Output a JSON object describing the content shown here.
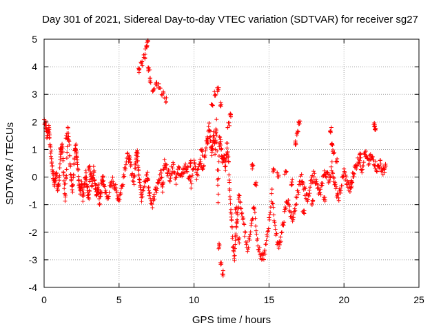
{
  "chart_data": {
    "type": "scatter",
    "title": "Day 301 of 2021, Sidereal Day-to-day VTEC variation (SDTVAR) for receiver sg27",
    "xlabel": "GPS time / hours",
    "ylabel": "SDTVAR / TECUs",
    "xlim": [
      0,
      25
    ],
    "ylim": [
      -4,
      5
    ],
    "xticks": [
      "0",
      "5",
      "10",
      "15",
      "20",
      "25"
    ],
    "yticks": [
      "-4",
      "-3",
      "-2",
      "-1",
      "0",
      "1",
      "2",
      "3",
      "4",
      "5"
    ],
    "grid": true,
    "marker": "+",
    "color": "#ff0000",
    "series": [
      {
        "name": "SDTVAR",
        "anchors": [
          [
            0.0,
            2.1
          ],
          [
            0.1,
            1.9
          ],
          [
            0.2,
            1.5
          ],
          [
            0.3,
            1.8
          ],
          [
            0.4,
            1.2
          ],
          [
            0.5,
            0.6
          ],
          [
            0.6,
            0.1
          ],
          [
            0.7,
            -0.3
          ],
          [
            0.8,
            0.3
          ],
          [
            0.9,
            -0.5
          ],
          [
            1.0,
            -0.1
          ],
          [
            1.1,
            0.7
          ],
          [
            1.2,
            1.3
          ],
          [
            1.3,
            0.2
          ],
          [
            1.4,
            -0.9
          ],
          [
            1.5,
            0.4
          ],
          [
            1.6,
            1.9
          ],
          [
            1.7,
            0.9
          ],
          [
            1.8,
            0.0
          ],
          [
            1.9,
            -0.4
          ],
          [
            2.0,
            0.5
          ],
          [
            2.1,
            1.2
          ],
          [
            2.2,
            0.7
          ],
          [
            2.3,
            -0.1
          ],
          [
            2.4,
            -0.6
          ],
          [
            2.5,
            -0.3
          ],
          [
            2.6,
            -0.8
          ],
          [
            2.7,
            -0.2
          ],
          [
            2.8,
            0.1
          ],
          [
            2.9,
            -0.5
          ],
          [
            3.0,
            -0.7
          ],
          [
            3.1,
            0.2
          ],
          [
            3.2,
            -0.3
          ],
          [
            3.3,
            0.3
          ],
          [
            3.4,
            -0.2
          ],
          [
            3.5,
            -0.6
          ],
          [
            3.6,
            -0.4
          ],
          [
            3.7,
            -0.9
          ],
          [
            3.8,
            -0.5
          ],
          [
            3.9,
            0.0
          ],
          [
            4.0,
            -0.3
          ],
          [
            4.2,
            -0.8
          ],
          [
            4.4,
            -0.4
          ],
          [
            4.6,
            -0.1
          ],
          [
            4.8,
            -0.5
          ],
          [
            5.0,
            -0.8
          ],
          [
            5.2,
            -0.3
          ],
          [
            5.4,
            0.4
          ],
          [
            5.6,
            0.8
          ],
          [
            5.8,
            0.3
          ],
          [
            6.0,
            -0.2
          ],
          [
            6.1,
            0.6
          ],
          [
            6.2,
            0.9
          ],
          [
            6.3,
            0.3
          ],
          [
            6.4,
            -0.3
          ],
          [
            6.5,
            -0.8
          ],
          [
            6.7,
            -0.2
          ],
          [
            6.9,
            0.1
          ],
          [
            7.0,
            -0.5
          ],
          [
            7.2,
            -1.0
          ],
          [
            7.4,
            -0.6
          ],
          [
            7.6,
            -0.3
          ],
          [
            7.8,
            0.2
          ],
          [
            7.9,
            -0.4
          ],
          [
            8.0,
            0.5
          ],
          [
            8.2,
            0.3
          ],
          [
            8.4,
            0.0
          ],
          [
            8.6,
            0.5
          ],
          [
            8.8,
            -0.1
          ],
          [
            9.0,
            0.3
          ],
          [
            9.2,
            0.0
          ],
          [
            9.4,
            0.4
          ],
          [
            9.6,
            0.2
          ],
          [
            9.8,
            -0.3
          ],
          [
            10.0,
            0.5
          ],
          [
            10.2,
            0.0
          ],
          [
            10.4,
            0.7
          ],
          [
            10.6,
            0.3
          ],
          [
            10.8,
            1.2
          ],
          [
            11.0,
            1.8
          ],
          [
            11.1,
            1.4
          ],
          [
            11.2,
            0.8
          ],
          [
            11.3,
            1.5
          ],
          [
            11.4,
            1.0
          ],
          [
            11.5,
            2.0
          ],
          [
            11.6,
            -0.8
          ],
          [
            11.7,
            1.4
          ],
          [
            11.8,
            1.2
          ],
          [
            11.9,
            0.5
          ],
          [
            12.0,
            0.9
          ],
          [
            12.1,
            0.3
          ],
          [
            12.2,
            1.2
          ],
          [
            12.3,
            0.6
          ],
          [
            12.4,
            -0.8
          ],
          [
            12.5,
            -1.6
          ],
          [
            12.6,
            -2.5
          ],
          [
            12.7,
            -2.9
          ],
          [
            12.8,
            -2.0
          ],
          [
            12.9,
            -1.4
          ],
          [
            13.0,
            -0.7
          ],
          [
            13.2,
            -1.3
          ],
          [
            13.4,
            -2.1
          ],
          [
            13.6,
            -2.6
          ],
          [
            13.8,
            -1.8
          ],
          [
            14.0,
            -1.0
          ],
          [
            14.2,
            -2.2
          ],
          [
            14.4,
            -2.8
          ],
          [
            14.6,
            -3.0
          ],
          [
            14.8,
            -2.5
          ],
          [
            15.0,
            -1.6
          ],
          [
            15.2,
            -0.6
          ],
          [
            15.4,
            -1.8
          ],
          [
            15.6,
            -2.5
          ],
          [
            15.8,
            -2.2
          ],
          [
            16.0,
            -1.5
          ],
          [
            16.2,
            -0.8
          ],
          [
            16.4,
            -1.2
          ],
          [
            16.6,
            -1.7
          ],
          [
            16.8,
            -0.9
          ],
          [
            17.0,
            -0.3
          ],
          [
            17.2,
            0.0
          ],
          [
            17.4,
            -0.5
          ],
          [
            17.6,
            -0.9
          ],
          [
            17.8,
            -0.2
          ],
          [
            18.0,
            0.1
          ],
          [
            18.2,
            -0.3
          ],
          [
            18.4,
            -0.7
          ],
          [
            18.6,
            0.0
          ],
          [
            18.8,
            0.2
          ],
          [
            19.0,
            -0.1
          ],
          [
            19.2,
            0.4
          ],
          [
            19.4,
            -0.3
          ],
          [
            19.6,
            -0.8
          ],
          [
            19.8,
            -0.4
          ],
          [
            20.0,
            0.2
          ],
          [
            20.2,
            -0.2
          ],
          [
            20.4,
            -0.5
          ],
          [
            20.6,
            0.1
          ],
          [
            20.8,
            0.4
          ],
          [
            21.0,
            0.7
          ],
          [
            21.2,
            0.3
          ],
          [
            21.4,
            0.9
          ],
          [
            21.6,
            0.5
          ],
          [
            21.8,
            0.7
          ],
          [
            22.0,
            0.6
          ],
          [
            22.2,
            0.3
          ],
          [
            22.4,
            0.5
          ],
          [
            22.6,
            0.2
          ],
          [
            22.8,
            0.4
          ]
        ],
        "clusters": [
          [
            6.3,
            3.9
          ],
          [
            6.5,
            4.1
          ],
          [
            6.7,
            4.4
          ],
          [
            6.8,
            4.7
          ],
          [
            6.9,
            4.85
          ],
          [
            7.0,
            3.9
          ],
          [
            7.1,
            3.5
          ],
          [
            7.3,
            3.2
          ],
          [
            7.5,
            3.4
          ],
          [
            7.7,
            3.3
          ],
          [
            7.9,
            3.0
          ],
          [
            8.1,
            2.8
          ],
          [
            11.2,
            2.7
          ],
          [
            11.4,
            3.0
          ],
          [
            11.6,
            3.2
          ],
          [
            11.8,
            2.6
          ],
          [
            12.3,
            1.9
          ],
          [
            12.4,
            2.3
          ],
          [
            11.7,
            -2.5
          ],
          [
            11.8,
            -3.1
          ],
          [
            11.9,
            -3.5
          ],
          [
            16.8,
            1.2
          ],
          [
            16.9,
            1.6
          ],
          [
            17.0,
            2.0
          ],
          [
            19.1,
            1.7
          ],
          [
            19.2,
            1.2
          ],
          [
            19.3,
            0.9
          ],
          [
            22.0,
            1.9
          ],
          [
            22.1,
            1.8
          ],
          [
            12.8,
            -1.2
          ],
          [
            13.0,
            -2.3
          ],
          [
            13.9,
            0.4
          ],
          [
            14.1,
            -0.2
          ],
          [
            15.3,
            0.3
          ],
          [
            15.6,
            0.1
          ],
          [
            16.1,
            0.2
          ],
          [
            16.5,
            -0.2
          ],
          [
            17.3,
            -1.3
          ],
          [
            17.9,
            -0.9
          ],
          [
            18.7,
            -0.8
          ],
          [
            19.5,
            0.6
          ],
          [
            20.5,
            -0.3
          ],
          [
            21.1,
            0.8
          ],
          [
            0.3,
            1.7
          ],
          [
            1.1,
            1.0
          ],
          [
            1.5,
            1.5
          ],
          [
            2.1,
            1.0
          ],
          [
            3.0,
            0.3
          ],
          [
            5.7,
            0.6
          ],
          [
            6.2,
            0.8
          ],
          [
            9.8,
            0.5
          ],
          [
            10.5,
            0.9
          ],
          [
            10.9,
            1.3
          ]
        ]
      }
    ]
  }
}
